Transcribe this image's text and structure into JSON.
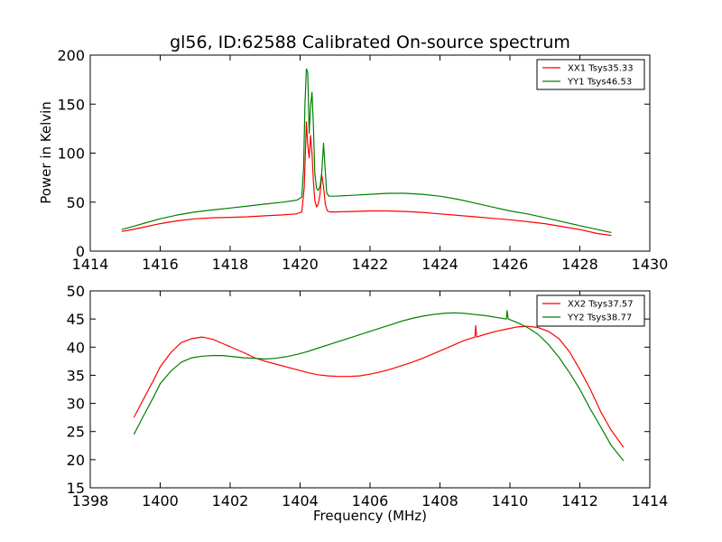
{
  "figure": {
    "title": "gl56, ID:62588 Calibrated On-source spectrum",
    "ylabel_top": "Power in Kelvin",
    "xlabel_bottom": "Frequency (MHz)"
  },
  "chart_data": [
    {
      "type": "line",
      "title": "gl56, ID:62588 Calibrated On-source spectrum",
      "xlabel": "",
      "ylabel": "Power in Kelvin",
      "xlim": [
        1414,
        1430
      ],
      "ylim": [
        0,
        200
      ],
      "xticks": [
        1414,
        1416,
        1418,
        1420,
        1422,
        1424,
        1426,
        1428,
        1430
      ],
      "yticks": [
        0,
        50,
        100,
        150,
        200
      ],
      "grid": false,
      "legend_position": "top-right",
      "series": [
        {
          "name": "XX1 Tsys35.33",
          "color": "#ff0000",
          "x": [
            1414.9,
            1415.2,
            1415.6,
            1416.0,
            1416.5,
            1417.0,
            1417.5,
            1418.0,
            1418.5,
            1419.0,
            1419.5,
            1419.9,
            1420.05,
            1420.12,
            1420.18,
            1420.22,
            1420.26,
            1420.3,
            1420.34,
            1420.38,
            1420.42,
            1420.47,
            1420.52,
            1420.57,
            1420.62,
            1420.67,
            1420.72,
            1420.78,
            1420.85,
            1421.0,
            1421.5,
            1422.0,
            1422.5,
            1423.0,
            1423.5,
            1424.0,
            1424.5,
            1425.0,
            1425.5,
            1426.0,
            1426.5,
            1427.0,
            1427.5,
            1428.0,
            1428.5,
            1428.9
          ],
          "y": [
            20,
            22,
            25,
            28,
            31,
            33,
            34,
            34.5,
            35,
            36,
            37,
            38,
            40,
            65,
            132,
            108,
            95,
            118,
            100,
            72,
            52,
            45,
            48,
            58,
            78,
            66,
            48,
            41,
            40,
            40,
            40.5,
            41,
            41,
            40.5,
            39.5,
            38,
            36.5,
            35,
            33.5,
            32,
            30,
            28,
            25,
            22,
            18,
            16
          ]
        },
        {
          "name": "YY1 Tsys46.53",
          "color": "#008000",
          "x": [
            1414.9,
            1415.2,
            1415.6,
            1416.0,
            1416.5,
            1417.0,
            1417.5,
            1418.0,
            1418.5,
            1419.0,
            1419.5,
            1419.9,
            1420.05,
            1420.1,
            1420.14,
            1420.18,
            1420.22,
            1420.26,
            1420.3,
            1420.34,
            1420.38,
            1420.42,
            1420.47,
            1420.52,
            1420.57,
            1420.62,
            1420.67,
            1420.71,
            1420.76,
            1420.82,
            1421.0,
            1421.5,
            1422.0,
            1422.5,
            1423.0,
            1423.5,
            1424.0,
            1424.5,
            1425.0,
            1425.5,
            1426.0,
            1426.5,
            1427.0,
            1427.5,
            1428.0,
            1428.5,
            1428.9
          ],
          "y": [
            22,
            25,
            29,
            33,
            37,
            40,
            42,
            44,
            46,
            48,
            50,
            52,
            55,
            85,
            150,
            186,
            182,
            120,
            148,
            162,
            130,
            80,
            64,
            62,
            66,
            80,
            110,
            88,
            60,
            56,
            56,
            57,
            58,
            59,
            59,
            58,
            56,
            53,
            49,
            45,
            41,
            38,
            34,
            30,
            26,
            22,
            19
          ]
        }
      ]
    },
    {
      "type": "line",
      "title": "",
      "xlabel": "Frequency (MHz)",
      "ylabel": "",
      "xlim": [
        1398,
        1414
      ],
      "ylim": [
        15,
        50
      ],
      "xticks": [
        1398,
        1400,
        1402,
        1404,
        1406,
        1408,
        1410,
        1412,
        1414
      ],
      "yticks": [
        15,
        20,
        25,
        30,
        35,
        40,
        45,
        50
      ],
      "grid": false,
      "legend_position": "top-right",
      "series": [
        {
          "name": "XX2 Tsys37.57",
          "color": "#ff0000",
          "x": [
            1399.25,
            1399.5,
            1399.8,
            1400.0,
            1400.3,
            1400.6,
            1400.9,
            1401.2,
            1401.5,
            1401.8,
            1402.1,
            1402.4,
            1402.7,
            1403.0,
            1403.3,
            1403.6,
            1403.9,
            1404.2,
            1404.5,
            1404.8,
            1405.1,
            1405.4,
            1405.7,
            1406.0,
            1406.3,
            1406.6,
            1406.9,
            1407.2,
            1407.5,
            1407.8,
            1408.1,
            1408.4,
            1408.7,
            1409.0,
            1409.02,
            1409.05,
            1409.3,
            1409.6,
            1409.9,
            1410.2,
            1410.5,
            1410.8,
            1411.1,
            1411.4,
            1411.7,
            1412.0,
            1412.3,
            1412.6,
            1412.9,
            1413.25
          ],
          "y": [
            27.5,
            30.5,
            34,
            36.5,
            39,
            40.8,
            41.5,
            41.8,
            41.4,
            40.6,
            39.8,
            39,
            38.1,
            37.5,
            37,
            36.5,
            36,
            35.5,
            35.1,
            34.9,
            34.8,
            34.8,
            34.9,
            35.2,
            35.6,
            36.1,
            36.7,
            37.3,
            38,
            38.8,
            39.6,
            40.4,
            41.2,
            41.8,
            43.8,
            41.8,
            42.3,
            42.8,
            43.2,
            43.6,
            43.7,
            43.5,
            42.8,
            41.5,
            39.2,
            36,
            32.5,
            28.5,
            25.2,
            22.2
          ]
        },
        {
          "name": "YY2 Tsys38.77",
          "color": "#008000",
          "x": [
            1399.25,
            1399.5,
            1399.8,
            1400.0,
            1400.3,
            1400.6,
            1400.9,
            1401.2,
            1401.5,
            1401.8,
            1402.1,
            1402.4,
            1402.7,
            1403.0,
            1403.3,
            1403.6,
            1403.9,
            1404.2,
            1404.5,
            1404.8,
            1405.1,
            1405.4,
            1405.7,
            1406.0,
            1406.3,
            1406.6,
            1406.9,
            1407.2,
            1407.5,
            1407.8,
            1408.1,
            1408.4,
            1408.7,
            1409.0,
            1409.3,
            1409.6,
            1409.9,
            1409.92,
            1409.95,
            1410.2,
            1410.5,
            1410.8,
            1411.1,
            1411.4,
            1411.7,
            1412.0,
            1412.3,
            1412.6,
            1412.9,
            1413.25
          ],
          "y": [
            24.5,
            27.5,
            31,
            33.5,
            35.7,
            37.3,
            38.1,
            38.4,
            38.5,
            38.5,
            38.3,
            38.1,
            38,
            37.9,
            38,
            38.3,
            38.7,
            39.2,
            39.8,
            40.4,
            41,
            41.6,
            42.2,
            42.8,
            43.4,
            44,
            44.6,
            45.1,
            45.5,
            45.8,
            46,
            46.1,
            46,
            45.8,
            45.6,
            45.3,
            45,
            46.5,
            45,
            44.4,
            43.5,
            42.3,
            40.5,
            38.2,
            35.5,
            32.5,
            29,
            25.8,
            22.5,
            19.8
          ]
        }
      ]
    }
  ]
}
